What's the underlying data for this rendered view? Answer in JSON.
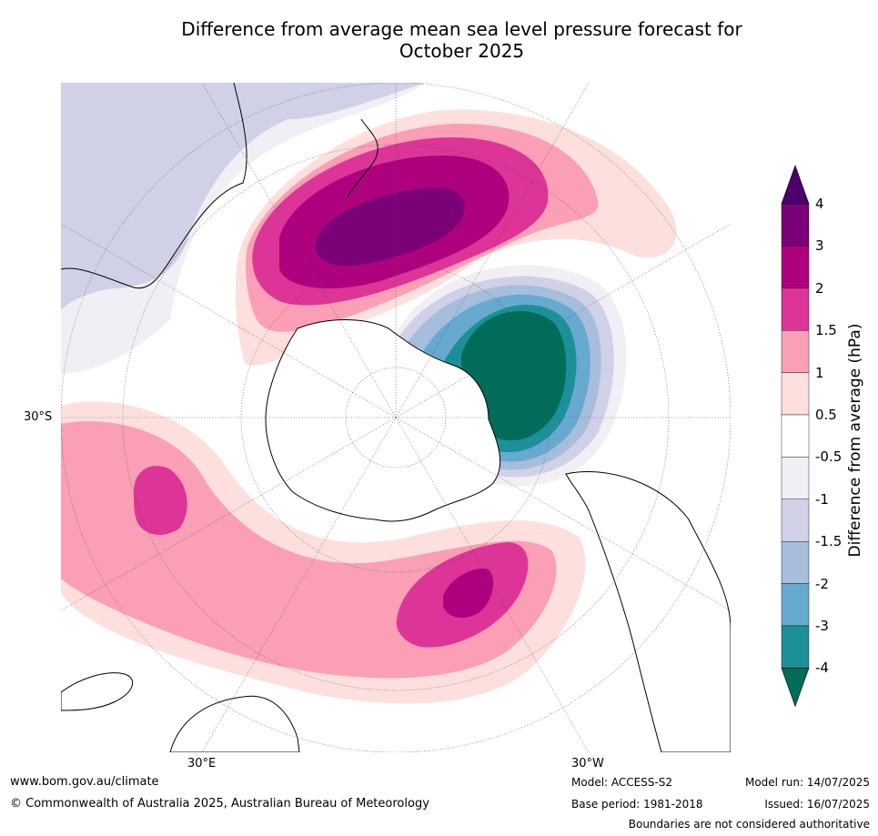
{
  "title": {
    "line1": "Difference from average mean sea level pressure forecast for",
    "line2": "October 2025"
  },
  "map": {
    "projection": "south-polar-stereographic",
    "axis_labels": {
      "lat": "30°S",
      "lon_east": "30°E",
      "lon_west": "30°W"
    }
  },
  "colorbar": {
    "title": "Difference from average (hPa)",
    "tick_labels": [
      "4",
      "3",
      "2",
      "1.5",
      "1",
      "0.5",
      "-0.5",
      "-1",
      "-1.5",
      "-2",
      "-3",
      "-4"
    ],
    "colors": [
      "#4b006e",
      "#7a0177",
      "#ae017e",
      "#dd3497",
      "#fa9fb5",
      "#fde0dd",
      "#ffffff",
      "#f2eef5",
      "#d0d1e6",
      "#a6bddb",
      "#67a9cf",
      "#1c9099",
      "#016c59"
    ]
  },
  "footer": {
    "website": "www.bom.gov.au/climate",
    "copyright": "© Commonwealth of Australia 2025, Australian Bureau of Meteorology",
    "model": "Model: ACCESS-S2",
    "base_period": "Base period: 1981-2018",
    "model_run": "Model run: 14/07/2025",
    "issued": "Issued: 16/07/2025",
    "disclaimer": "Boundaries are not considered authoritative"
  }
}
